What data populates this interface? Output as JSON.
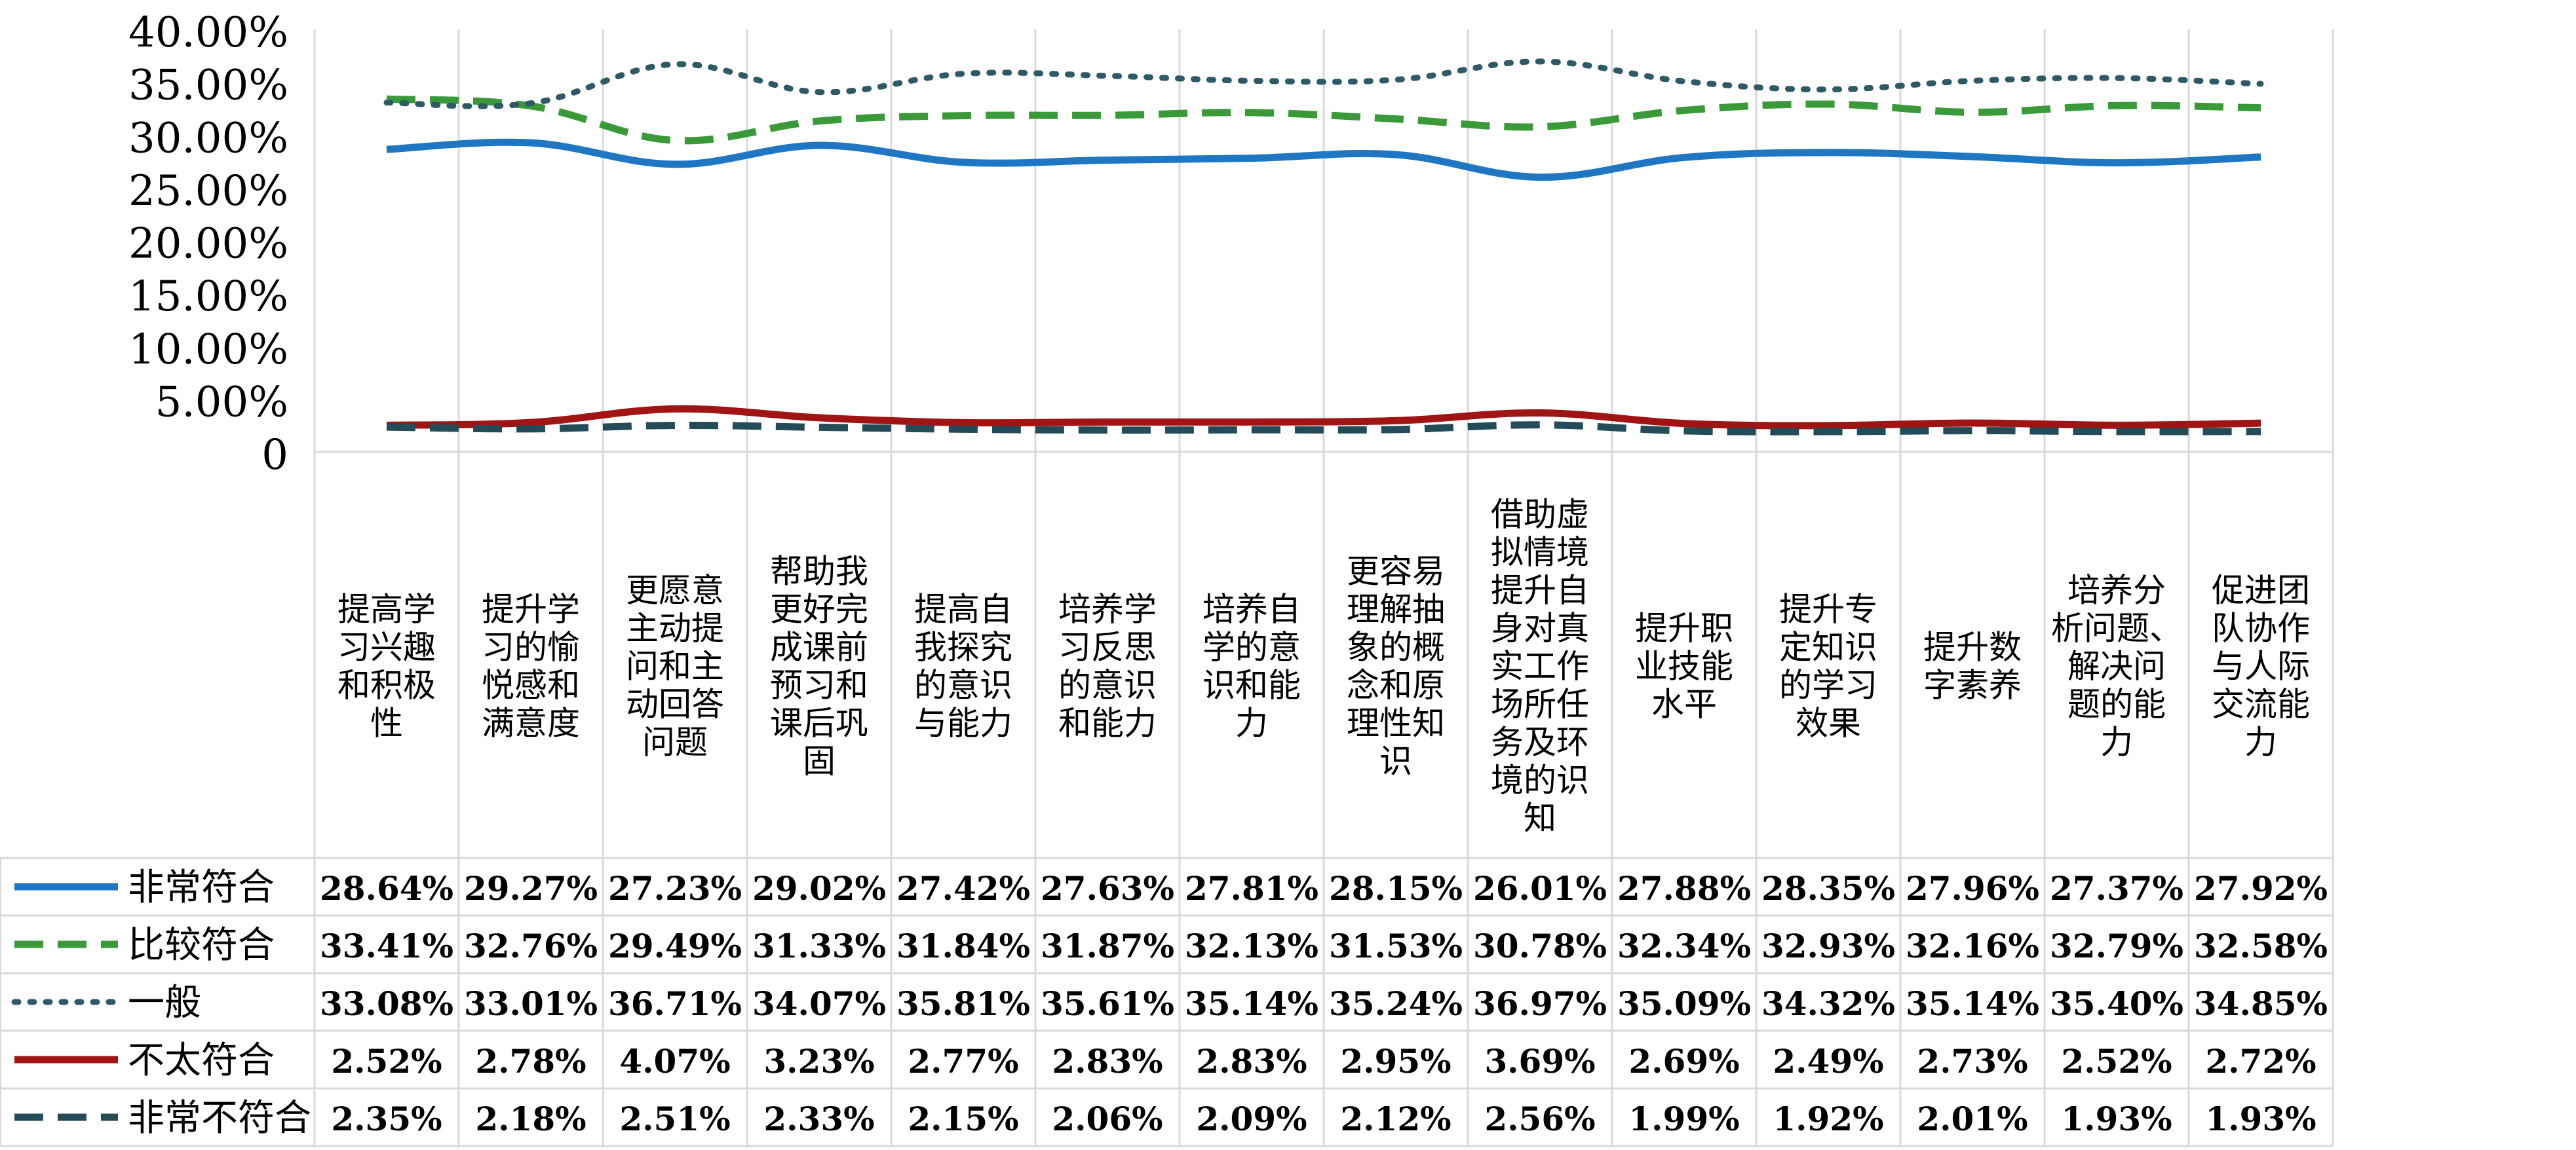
{
  "chart_data": {
    "type": "line",
    "title": "",
    "xlabel": "",
    "ylabel": "",
    "ylim": [
      0,
      0.4
    ],
    "y_ticks": [
      "0",
      "5.00%",
      "10.00%",
      "15.00%",
      "20.00%",
      "25.00%",
      "30.00%",
      "35.00%",
      "40.00%"
    ],
    "y_tick_values": [
      0,
      0.05,
      0.1,
      0.15,
      0.2,
      0.25,
      0.3,
      0.35,
      0.4
    ],
    "grid": "vertical lines only",
    "legend_placement": "data table below plot",
    "categories": [
      [
        "提高学",
        "习兴趣",
        "和积极",
        "性"
      ],
      [
        "提升学",
        "习的愉",
        "悦感和",
        "满意度"
      ],
      [
        "更愿意",
        "主动提",
        "问和主",
        "动回答",
        "问题"
      ],
      [
        "帮助我",
        "更好完",
        "成课前",
        "预习和",
        "课后巩",
        "固"
      ],
      [
        "提高自",
        "我探究",
        "的意识",
        "与能力"
      ],
      [
        "培养学",
        "习反思",
        "的意识",
        "和能力"
      ],
      [
        "培养自",
        "学的意",
        "识和能",
        "力"
      ],
      [
        "更容易",
        "理解抽",
        "象的概",
        "念和原",
        "理性知",
        "识"
      ],
      [
        "借助虚",
        "拟情境",
        "提升自",
        "身对真",
        "实工作",
        "场所任",
        "务及环",
        "境的识",
        "知"
      ],
      [
        "提升职",
        "业技能",
        "水平"
      ],
      [
        "提升专",
        "定知识",
        "的学习",
        "效果"
      ],
      [
        "提升数",
        "字素养"
      ],
      [
        "培养分",
        "析问题、",
        "解决问",
        "题的能",
        "力"
      ],
      [
        "促进团",
        "队协作",
        "与人际",
        "交流能",
        "力"
      ]
    ],
    "series": [
      {
        "name": "非常符合",
        "color": "#1f77c4",
        "dash": "solid",
        "values": [
          0.2864,
          0.2927,
          0.2723,
          0.2902,
          0.2742,
          0.2763,
          0.2781,
          0.2815,
          0.2601,
          0.2788,
          0.2835,
          0.2796,
          0.2737,
          0.2792
        ],
        "labels": [
          "28.64%",
          "29.27%",
          "27.23%",
          "29.02%",
          "27.42%",
          "27.63%",
          "27.81%",
          "28.15%",
          "26.01%",
          "27.88%",
          "28.35%",
          "27.96%",
          "27.37%",
          "27.92%"
        ]
      },
      {
        "name": "比较符合",
        "color": "#3a9a3a",
        "dash": "dashed",
        "values": [
          0.3341,
          0.3276,
          0.2949,
          0.3133,
          0.3184,
          0.3187,
          0.3213,
          0.3153,
          0.3078,
          0.3234,
          0.3293,
          0.3216,
          0.3279,
          0.3258
        ],
        "labels": [
          "33.41%",
          "32.76%",
          "29.49%",
          "31.33%",
          "31.84%",
          "31.87%",
          "32.13%",
          "31.53%",
          "30.78%",
          "32.34%",
          "32.93%",
          "32.16%",
          "32.79%",
          "32.58%"
        ]
      },
      {
        "name": "一般",
        "color": "#2e5a66",
        "dash": "dotted",
        "values": [
          0.3308,
          0.3301,
          0.3671,
          0.3407,
          0.3581,
          0.3561,
          0.3514,
          0.3524,
          0.3697,
          0.3509,
          0.3432,
          0.3514,
          0.354,
          0.3485
        ],
        "labels": [
          "33.08%",
          "33.01%",
          "36.71%",
          "34.07%",
          "35.81%",
          "35.61%",
          "35.14%",
          "35.24%",
          "36.97%",
          "35.09%",
          "34.32%",
          "35.14%",
          "35.40%",
          "34.85%"
        ]
      },
      {
        "name": "不太符合",
        "color": "#a01414",
        "dash": "solid",
        "values": [
          0.0252,
          0.0278,
          0.0407,
          0.0323,
          0.0277,
          0.0283,
          0.0283,
          0.0295,
          0.0369,
          0.0269,
          0.0249,
          0.0273,
          0.0252,
          0.0272
        ],
        "labels": [
          "2.52%",
          "2.78%",
          "4.07%",
          "3.23%",
          "2.77%",
          "2.83%",
          "2.83%",
          "2.95%",
          "3.69%",
          "2.69%",
          "2.49%",
          "2.73%",
          "2.52%",
          "2.72%"
        ]
      },
      {
        "name": "非常不符合",
        "color": "#244c58",
        "dash": "dashed",
        "values": [
          0.0235,
          0.0218,
          0.0251,
          0.0233,
          0.0215,
          0.0206,
          0.0209,
          0.0212,
          0.0256,
          0.0199,
          0.0192,
          0.0201,
          0.0193,
          0.0193
        ],
        "labels": [
          "2.35%",
          "2.18%",
          "2.51%",
          "2.33%",
          "2.15%",
          "2.06%",
          "2.09%",
          "2.12%",
          "2.56%",
          "1.99%",
          "1.92%",
          "2.01%",
          "1.93%",
          "1.93%"
        ]
      }
    ]
  }
}
